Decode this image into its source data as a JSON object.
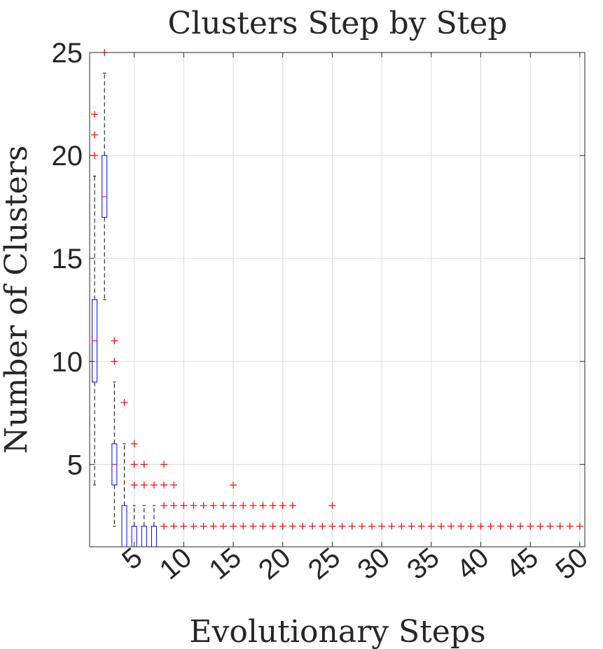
{
  "chart_data": {
    "type": "box",
    "title": "Clusters Step by Step",
    "xlabel": "Evolutionary Steps",
    "ylabel": "Number of Clusters",
    "xlim": [
      0.5,
      50.5
    ],
    "ylim": [
      1,
      25
    ],
    "xticks": [
      5,
      10,
      15,
      20,
      25,
      30,
      35,
      40,
      45,
      50
    ],
    "yticks": [
      5,
      10,
      15,
      20,
      25
    ],
    "grid": true,
    "colors": {
      "box": "#0000ff",
      "median": "#ff0000",
      "whisker": "#000000",
      "outlier": "#ff0000",
      "grid": "#d9d9d9",
      "text": "#262626"
    },
    "boxes": [
      {
        "step": 1,
        "q1": 9,
        "median": 11,
        "q3": 13,
        "whisker_low": 4,
        "whisker_high": 19,
        "outliers": [
          20,
          21,
          22
        ]
      },
      {
        "step": 2,
        "q1": 17,
        "median": 18,
        "q3": 20,
        "whisker_low": 13,
        "whisker_high": 24,
        "outliers": [
          25
        ]
      },
      {
        "step": 3,
        "q1": 4,
        "median": 5,
        "q3": 6,
        "whisker_low": 2,
        "whisker_high": 9,
        "outliers": [
          10,
          11
        ]
      },
      {
        "step": 4,
        "q1": 1,
        "median": 1,
        "q3": 3,
        "whisker_low": 1,
        "whisker_high": 6,
        "outliers": [
          8
        ]
      },
      {
        "step": 5,
        "q1": 1,
        "median": 1,
        "q3": 2,
        "whisker_low": 1,
        "whisker_high": 3,
        "outliers": [
          4,
          5,
          6
        ]
      },
      {
        "step": 6,
        "q1": 1,
        "median": 1,
        "q3": 2,
        "whisker_low": 1,
        "whisker_high": 3,
        "outliers": [
          4,
          5
        ]
      },
      {
        "step": 7,
        "q1": 1,
        "median": 1,
        "q3": 2,
        "whisker_low": 1,
        "whisker_high": 3,
        "outliers": [
          4
        ]
      },
      {
        "step": 8,
        "q1": 1,
        "median": 1,
        "q3": 1,
        "whisker_low": 1,
        "whisker_high": 1,
        "outliers": [
          2,
          3,
          4,
          5
        ]
      },
      {
        "step": 9,
        "q1": 1,
        "median": 1,
        "q3": 1,
        "whisker_low": 1,
        "whisker_high": 1,
        "outliers": [
          2,
          3,
          4
        ]
      },
      {
        "step": 10,
        "q1": 1,
        "median": 1,
        "q3": 1,
        "whisker_low": 1,
        "whisker_high": 1,
        "outliers": [
          2,
          3
        ]
      },
      {
        "step": 11,
        "q1": 1,
        "median": 1,
        "q3": 1,
        "whisker_low": 1,
        "whisker_high": 1,
        "outliers": [
          2,
          3
        ]
      },
      {
        "step": 12,
        "q1": 1,
        "median": 1,
        "q3": 1,
        "whisker_low": 1,
        "whisker_high": 1,
        "outliers": [
          2,
          3
        ]
      },
      {
        "step": 13,
        "q1": 1,
        "median": 1,
        "q3": 1,
        "whisker_low": 1,
        "whisker_high": 1,
        "outliers": [
          2,
          3
        ]
      },
      {
        "step": 14,
        "q1": 1,
        "median": 1,
        "q3": 1,
        "whisker_low": 1,
        "whisker_high": 1,
        "outliers": [
          2,
          3
        ]
      },
      {
        "step": 15,
        "q1": 1,
        "median": 1,
        "q3": 1,
        "whisker_low": 1,
        "whisker_high": 1,
        "outliers": [
          2,
          3,
          4
        ]
      },
      {
        "step": 16,
        "q1": 1,
        "median": 1,
        "q3": 1,
        "whisker_low": 1,
        "whisker_high": 1,
        "outliers": [
          2,
          3
        ]
      },
      {
        "step": 17,
        "q1": 1,
        "median": 1,
        "q3": 1,
        "whisker_low": 1,
        "whisker_high": 1,
        "outliers": [
          2,
          3
        ]
      },
      {
        "step": 18,
        "q1": 1,
        "median": 1,
        "q3": 1,
        "whisker_low": 1,
        "whisker_high": 1,
        "outliers": [
          2,
          3
        ]
      },
      {
        "step": 19,
        "q1": 1,
        "median": 1,
        "q3": 1,
        "whisker_low": 1,
        "whisker_high": 1,
        "outliers": [
          2,
          3
        ]
      },
      {
        "step": 20,
        "q1": 1,
        "median": 1,
        "q3": 1,
        "whisker_low": 1,
        "whisker_high": 1,
        "outliers": [
          2,
          3
        ]
      },
      {
        "step": 21,
        "q1": 1,
        "median": 1,
        "q3": 1,
        "whisker_low": 1,
        "whisker_high": 1,
        "outliers": [
          2,
          3
        ]
      },
      {
        "step": 22,
        "q1": 1,
        "median": 1,
        "q3": 1,
        "whisker_low": 1,
        "whisker_high": 1,
        "outliers": [
          2
        ]
      },
      {
        "step": 23,
        "q1": 1,
        "median": 1,
        "q3": 1,
        "whisker_low": 1,
        "whisker_high": 1,
        "outliers": [
          2
        ]
      },
      {
        "step": 24,
        "q1": 1,
        "median": 1,
        "q3": 1,
        "whisker_low": 1,
        "whisker_high": 1,
        "outliers": [
          2
        ]
      },
      {
        "step": 25,
        "q1": 1,
        "median": 1,
        "q3": 1,
        "whisker_low": 1,
        "whisker_high": 1,
        "outliers": [
          2,
          3
        ]
      },
      {
        "step": 26,
        "q1": 1,
        "median": 1,
        "q3": 1,
        "whisker_low": 1,
        "whisker_high": 1,
        "outliers": [
          2
        ]
      },
      {
        "step": 27,
        "q1": 1,
        "median": 1,
        "q3": 1,
        "whisker_low": 1,
        "whisker_high": 1,
        "outliers": [
          2
        ]
      },
      {
        "step": 28,
        "q1": 1,
        "median": 1,
        "q3": 1,
        "whisker_low": 1,
        "whisker_high": 1,
        "outliers": [
          2
        ]
      },
      {
        "step": 29,
        "q1": 1,
        "median": 1,
        "q3": 1,
        "whisker_low": 1,
        "whisker_high": 1,
        "outliers": [
          2
        ]
      },
      {
        "step": 30,
        "q1": 1,
        "median": 1,
        "q3": 1,
        "whisker_low": 1,
        "whisker_high": 1,
        "outliers": [
          2
        ]
      },
      {
        "step": 31,
        "q1": 1,
        "median": 1,
        "q3": 1,
        "whisker_low": 1,
        "whisker_high": 1,
        "outliers": [
          2
        ]
      },
      {
        "step": 32,
        "q1": 1,
        "median": 1,
        "q3": 1,
        "whisker_low": 1,
        "whisker_high": 1,
        "outliers": [
          2
        ]
      },
      {
        "step": 33,
        "q1": 1,
        "median": 1,
        "q3": 1,
        "whisker_low": 1,
        "whisker_high": 1,
        "outliers": [
          2
        ]
      },
      {
        "step": 34,
        "q1": 1,
        "median": 1,
        "q3": 1,
        "whisker_low": 1,
        "whisker_high": 1,
        "outliers": [
          2
        ]
      },
      {
        "step": 35,
        "q1": 1,
        "median": 1,
        "q3": 1,
        "whisker_low": 1,
        "whisker_high": 1,
        "outliers": [
          2
        ]
      },
      {
        "step": 36,
        "q1": 1,
        "median": 1,
        "q3": 1,
        "whisker_low": 1,
        "whisker_high": 1,
        "outliers": [
          2
        ]
      },
      {
        "step": 37,
        "q1": 1,
        "median": 1,
        "q3": 1,
        "whisker_low": 1,
        "whisker_high": 1,
        "outliers": [
          2
        ]
      },
      {
        "step": 38,
        "q1": 1,
        "median": 1,
        "q3": 1,
        "whisker_low": 1,
        "whisker_high": 1,
        "outliers": [
          2
        ]
      },
      {
        "step": 39,
        "q1": 1,
        "median": 1,
        "q3": 1,
        "whisker_low": 1,
        "whisker_high": 1,
        "outliers": [
          2
        ]
      },
      {
        "step": 40,
        "q1": 1,
        "median": 1,
        "q3": 1,
        "whisker_low": 1,
        "whisker_high": 1,
        "outliers": [
          2
        ]
      },
      {
        "step": 41,
        "q1": 1,
        "median": 1,
        "q3": 1,
        "whisker_low": 1,
        "whisker_high": 1,
        "outliers": [
          2
        ]
      },
      {
        "step": 42,
        "q1": 1,
        "median": 1,
        "q3": 1,
        "whisker_low": 1,
        "whisker_high": 1,
        "outliers": [
          2
        ]
      },
      {
        "step": 43,
        "q1": 1,
        "median": 1,
        "q3": 1,
        "whisker_low": 1,
        "whisker_high": 1,
        "outliers": [
          2
        ]
      },
      {
        "step": 44,
        "q1": 1,
        "median": 1,
        "q3": 1,
        "whisker_low": 1,
        "whisker_high": 1,
        "outliers": [
          2
        ]
      },
      {
        "step": 45,
        "q1": 1,
        "median": 1,
        "q3": 1,
        "whisker_low": 1,
        "whisker_high": 1,
        "outliers": [
          2
        ]
      },
      {
        "step": 46,
        "q1": 1,
        "median": 1,
        "q3": 1,
        "whisker_low": 1,
        "whisker_high": 1,
        "outliers": [
          2
        ]
      },
      {
        "step": 47,
        "q1": 1,
        "median": 1,
        "q3": 1,
        "whisker_low": 1,
        "whisker_high": 1,
        "outliers": [
          2
        ]
      },
      {
        "step": 48,
        "q1": 1,
        "median": 1,
        "q3": 1,
        "whisker_low": 1,
        "whisker_high": 1,
        "outliers": [
          2
        ]
      },
      {
        "step": 49,
        "q1": 1,
        "median": 1,
        "q3": 1,
        "whisker_low": 1,
        "whisker_high": 1,
        "outliers": [
          2
        ]
      },
      {
        "step": 50,
        "q1": 1,
        "median": 1,
        "q3": 1,
        "whisker_low": 1,
        "whisker_high": 1,
        "outliers": [
          2
        ]
      }
    ]
  }
}
